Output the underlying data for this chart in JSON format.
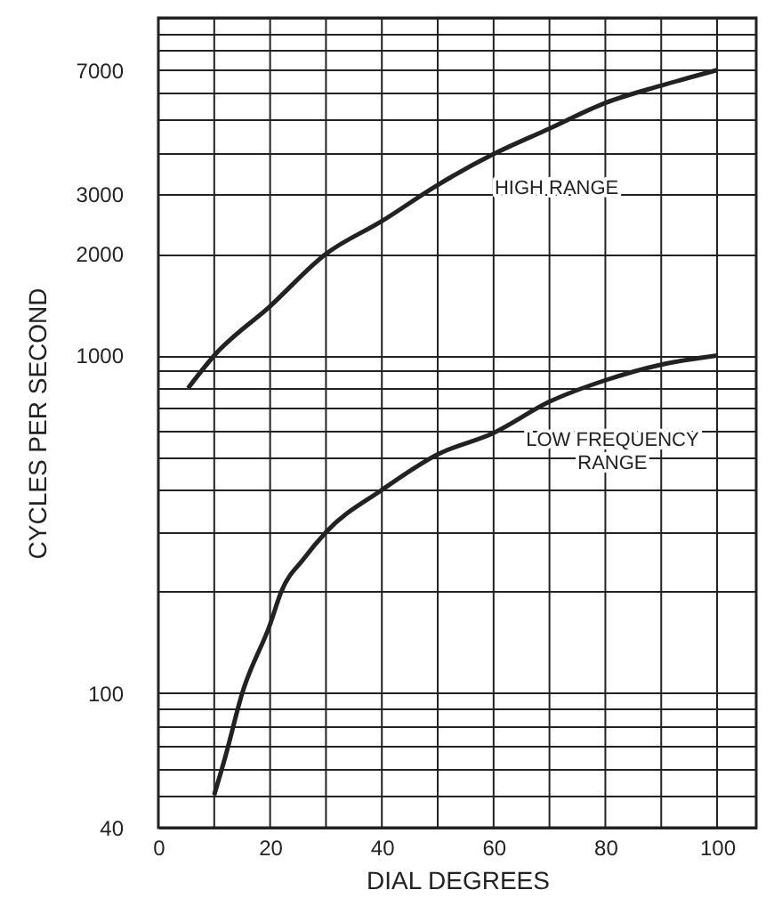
{
  "chart_data": {
    "type": "line",
    "xlabel": "DIAL DEGREES",
    "ylabel": "CYCLES PER SECOND",
    "log": "y",
    "grid": true,
    "marker": "none",
    "line_style": "solid",
    "xlim": [
      0,
      107
    ],
    "xticks": [
      0,
      {
        "value": 10,
        "label": null
      },
      20,
      {
        "value": 30,
        "label": null
      },
      40,
      {
        "value": 50,
        "label": null
      },
      60,
      {
        "value": 70,
        "label": null
      },
      80,
      {
        "value": 90,
        "label": null
      },
      100
    ],
    "ylim": [
      40,
      10000
    ],
    "yticks": [
      40,
      {
        "value": 50,
        "label": null
      },
      {
        "value": 60,
        "label": null
      },
      {
        "value": 70,
        "label": null
      },
      {
        "value": 80,
        "label": null
      },
      {
        "value": 90,
        "label": null
      },
      100,
      {
        "value": 200,
        "label": null
      },
      {
        "value": 300,
        "label": null
      },
      {
        "value": 400,
        "label": null
      },
      {
        "value": 500,
        "label": null
      },
      {
        "value": 600,
        "label": null
      },
      {
        "value": 700,
        "label": null
      },
      {
        "value": 800,
        "label": null
      },
      {
        "value": 900,
        "label": null
      },
      1000,
      2000,
      3000,
      {
        "value": 4000,
        "label": null
      },
      {
        "value": 5000,
        "label": null
      },
      {
        "value": 6000,
        "label": null
      },
      7000,
      {
        "value": 8000,
        "label": null
      },
      {
        "value": 9000,
        "label": null
      },
      {
        "value": 10000,
        "label": null
      }
    ],
    "series": [
      {
        "name": "HIGH RANGE",
        "color": "#222222",
        "x": [
          5.3,
          10,
          20,
          30,
          40,
          50,
          60,
          70,
          80,
          90,
          100
        ],
        "values": [
          800,
          1000,
          1400,
          2000,
          2500,
          3200,
          3950,
          4700,
          5600,
          6300,
          7000
        ]
      },
      {
        "name": "LOW FREQUENCY RANGE",
        "color": "#222222",
        "x": [
          10,
          12,
          15,
          20,
          22,
          26,
          30,
          40,
          50,
          60,
          70,
          80,
          90,
          100
        ],
        "values": [
          50,
          65,
          100,
          160,
          200,
          250,
          300,
          400,
          510,
          590,
          730,
          845,
          940,
          1000
        ]
      }
    ]
  }
}
